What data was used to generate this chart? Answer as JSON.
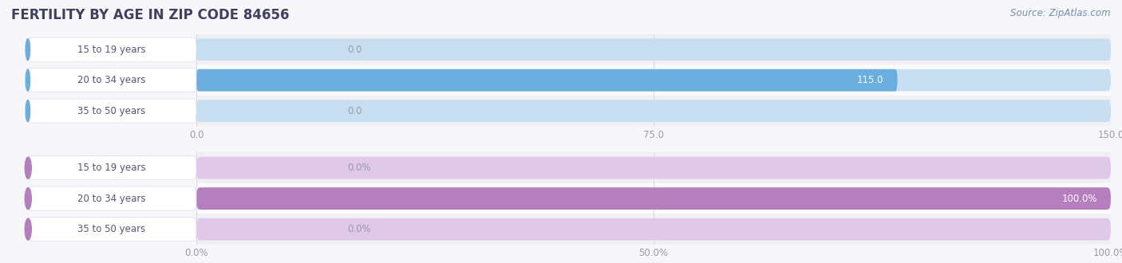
{
  "title": "FERTILITY BY AGE IN ZIP CODE 84656",
  "source": "Source: ZipAtlas.com",
  "categories": [
    "15 to 19 years",
    "20 to 34 years",
    "35 to 50 years"
  ],
  "values_count": [
    0.0,
    115.0,
    0.0
  ],
  "values_pct": [
    0.0,
    100.0,
    0.0
  ],
  "xlim_count": [
    0,
    150.0
  ],
  "xlim_pct": [
    0,
    100.0
  ],
  "xticks_count": [
    0.0,
    75.0,
    150.0
  ],
  "xticks_pct": [
    0.0,
    50.0,
    100.0
  ],
  "xtick_labels_count": [
    "0.0",
    "75.0",
    "150.0"
  ],
  "xtick_labels_pct": [
    "0.0%",
    "50.0%",
    "100.0%"
  ],
  "bar_color_count": "#6aaee0",
  "bar_color_pct": "#b57fbe",
  "bar_bg_color_count": "#c8dff2",
  "bar_bg_color_pct": "#dfc8e8",
  "label_pill_bg_count": "#ddeeff",
  "label_pill_bg_pct": "#eeddf8",
  "bg_color": "#f7f7fa",
  "row_bg_even": "#f0f0f5",
  "row_bg_odd": "#fafafd",
  "title_color": "#404060",
  "source_color": "#7090b0",
  "tick_color": "#999aaa",
  "label_text_color": "#555577",
  "bar_height": 0.72,
  "bar_label_fontsize": 8.5,
  "tick_fontsize": 8.5,
  "title_fontsize": 12,
  "ylabel_fontsize": 8.5,
  "grid_color": "#d8d8e8"
}
